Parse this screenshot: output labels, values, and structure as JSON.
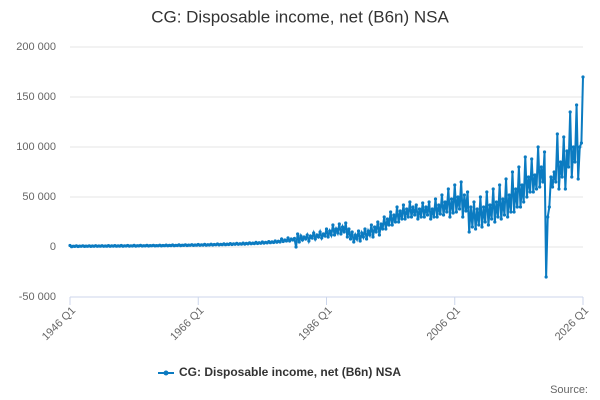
{
  "chart_data": {
    "type": "line",
    "title": "CG: Disposable income, net (B6n) NSA",
    "source": "Source:",
    "categories": [
      "1946 Q1",
      null,
      null,
      null,
      null,
      null,
      null,
      null,
      null,
      null,
      null,
      null,
      null,
      null,
      null,
      null,
      null,
      null,
      null,
      null,
      null,
      null,
      null,
      null,
      null,
      null,
      null,
      null,
      null,
      null,
      null,
      null,
      null,
      null,
      null,
      null,
      null,
      null,
      null,
      null,
      null,
      null,
      null,
      null,
      null,
      null,
      null,
      null,
      null,
      null,
      null,
      null,
      null,
      null,
      null,
      null,
      null,
      null,
      null,
      null,
      null,
      null,
      null,
      null,
      null,
      null,
      null,
      null,
      null,
      null,
      null,
      null,
      null,
      null,
      null,
      null,
      null,
      null,
      null,
      null,
      "1966 Q1",
      null,
      null,
      null,
      null,
      null,
      null,
      null,
      null,
      null,
      null,
      null,
      null,
      null,
      null,
      null,
      null,
      null,
      null,
      null,
      null,
      null,
      null,
      null,
      null,
      null,
      null,
      null,
      null,
      null,
      null,
      null,
      null,
      null,
      null,
      null,
      null,
      null,
      null,
      null,
      null,
      null,
      null,
      null,
      null,
      null,
      null,
      null,
      null,
      null,
      null,
      null,
      null,
      null,
      null,
      null,
      null,
      null,
      null,
      null,
      null,
      null,
      null,
      null,
      null,
      null,
      null,
      null,
      null,
      null,
      null,
      null,
      null,
      null,
      null,
      null,
      null,
      null,
      null,
      null,
      "1986 Q1",
      null,
      null,
      null,
      null,
      null,
      null,
      null,
      null,
      null,
      null,
      null,
      null,
      null,
      null,
      null,
      null,
      null,
      null,
      null,
      null,
      null,
      null,
      null,
      null,
      null,
      null,
      null,
      null,
      null,
      null,
      null,
      null,
      null,
      null,
      null,
      null,
      null,
      null,
      null,
      null,
      null,
      null,
      null,
      null,
      null,
      null,
      null,
      null,
      null,
      null,
      null,
      null,
      null,
      null,
      null,
      null,
      null,
      null,
      null,
      null,
      null,
      null,
      null,
      null,
      null,
      null,
      null,
      null,
      null,
      null,
      null,
      null,
      null,
      null,
      null,
      null,
      null,
      null,
      null,
      "2006 Q1",
      null,
      null,
      null,
      null,
      null,
      null,
      null,
      null,
      null,
      null,
      null,
      null,
      null,
      null,
      null,
      null,
      null,
      null,
      null,
      null,
      null,
      null,
      null,
      null,
      null,
      null,
      null,
      null,
      null,
      null,
      null,
      null,
      null,
      null,
      null,
      null,
      null,
      null,
      null,
      null,
      null,
      null,
      null,
      null,
      null,
      null,
      null,
      null,
      null,
      null,
      null,
      null,
      null,
      null,
      null,
      null,
      null,
      null,
      null,
      null,
      null,
      null,
      null,
      null,
      null,
      null,
      null,
      null,
      null,
      null,
      null,
      null,
      null,
      null,
      null,
      null,
      null,
      null,
      null,
      "2026 Q1"
    ],
    "series": [
      {
        "name": "CG: Disposable income, net (B6n) NSA",
        "color": "#0b7bc1",
        "values": [
          1500,
          300,
          800,
          600,
          1100,
          500,
          900,
          700,
          1200,
          600,
          900,
          700,
          1200,
          600,
          1000,
          700,
          1300,
          700,
          1000,
          800,
          1300,
          700,
          1000,
          800,
          1400,
          700,
          1100,
          900,
          1400,
          800,
          1100,
          900,
          1500,
          800,
          1200,
          1000,
          1500,
          900,
          1200,
          1000,
          1600,
          900,
          1300,
          1100,
          1600,
          1000,
          1300,
          1100,
          1700,
          1000,
          1400,
          1200,
          1700,
          1100,
          1400,
          1200,
          1800,
          1100,
          1500,
          1300,
          1900,
          1200,
          1600,
          1400,
          2000,
          1300,
          1700,
          1500,
          2100,
          1400,
          1800,
          1600,
          2200,
          1500,
          1900,
          1700,
          2300,
          1600,
          2000,
          1800,
          2500,
          1700,
          2200,
          1900,
          2600,
          1800,
          2300,
          2000,
          2800,
          2000,
          2500,
          2200,
          3000,
          2100,
          2700,
          2300,
          3200,
          2300,
          2900,
          2500,
          3400,
          2500,
          3100,
          2700,
          3600,
          2700,
          3300,
          2900,
          3900,
          2900,
          3600,
          3100,
          4200,
          3200,
          3900,
          3400,
          4600,
          3500,
          4300,
          3700,
          5000,
          3900,
          4700,
          4100,
          5400,
          4300,
          5200,
          4500,
          6000,
          4800,
          5800,
          5000,
          8000,
          5500,
          7000,
          6000,
          9000,
          6000,
          8000,
          7000,
          8500,
          0,
          13000,
          5000,
          11000,
          7000,
          10000,
          8000,
          12000,
          6000,
          11000,
          9000,
          14000,
          8000,
          12000,
          10000,
          15000,
          9000,
          13000,
          11000,
          18000,
          10000,
          16000,
          12000,
          22000,
          12000,
          18000,
          14000,
          23000,
          13000,
          20000,
          15000,
          24000,
          10000,
          18000,
          8000,
          15000,
          5000,
          12000,
          8000,
          16000,
          6000,
          14000,
          10000,
          18000,
          8000,
          16000,
          12000,
          22000,
          10000,
          20000,
          15000,
          25000,
          12000,
          23000,
          18000,
          30000,
          18000,
          28000,
          22000,
          35000,
          22000,
          32000,
          25000,
          40000,
          25000,
          36000,
          28000,
          42000,
          28000,
          38000,
          30000,
          45000,
          30000,
          40000,
          32000,
          42000,
          28000,
          38000,
          30000,
          44000,
          30000,
          40000,
          32000,
          45000,
          28000,
          38000,
          30000,
          48000,
          30000,
          42000,
          33000,
          52000,
          32000,
          45000,
          35000,
          58000,
          30000,
          48000,
          34000,
          62000,
          35000,
          50000,
          38000,
          65000,
          30000,
          52000,
          36000,
          55000,
          15000,
          40000,
          20000,
          45000,
          18000,
          38000,
          22000,
          50000,
          20000,
          40000,
          25000,
          55000,
          22000,
          42000,
          28000,
          58000,
          25000,
          45000,
          30000,
          62000,
          28000,
          48000,
          32000,
          68000,
          30000,
          52000,
          35000,
          75000,
          35000,
          58000,
          40000,
          80000,
          40000,
          62000,
          45000,
          90000,
          50000,
          70000,
          55000,
          88000,
          55000,
          72000,
          58000,
          100000,
          60000,
          80000,
          65000,
          95000,
          -30000,
          30000,
          40000,
          70000,
          60000,
          75000,
          65000,
          113000,
          58000,
          85000,
          70000,
          110000,
          58000,
          96000,
          80000,
          135000,
          70000,
          100000,
          85000,
          142000,
          68000,
          100000,
          104000,
          170000
        ]
      }
    ],
    "ylim": [
      -50000,
      200000
    ],
    "yticks": [
      {
        "value": -50000,
        "label": "-50 000"
      },
      0,
      {
        "value": 50000,
        "label": "50 000"
      },
      {
        "value": 100000,
        "label": "100 000"
      },
      {
        "value": 150000,
        "label": "150 000"
      },
      {
        "value": 200000,
        "label": "200 000"
      }
    ],
    "grid": true
  }
}
